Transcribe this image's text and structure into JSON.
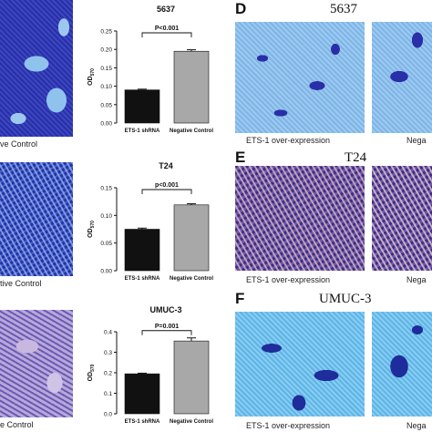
{
  "left_column": {
    "captions": [
      "ve Control",
      "tive Control",
      "e Control"
    ]
  },
  "right_column": {
    "panels": [
      {
        "letter": "D",
        "title": "5637",
        "caption_left": "ETS-1 over-expression",
        "caption_right": "Nega"
      },
      {
        "letter": "E",
        "title": "T24",
        "caption_left": "ETS-1 over-expression",
        "caption_right": "Nega"
      },
      {
        "letter": "F",
        "title": "UMUC-3",
        "caption_left": "ETS-1 over-expression",
        "caption_right": "Nega"
      }
    ]
  },
  "colors": {
    "shrna_bar": "#111111",
    "control_bar": "#a8a8a8",
    "stain_dark": "#2a2ea8",
    "stain_light": "#8fc3ee"
  },
  "chart_data": [
    {
      "type": "bar",
      "title": "5637",
      "categories": [
        "ETS-1 shRNA",
        "Negative Control"
      ],
      "values": [
        0.09,
        0.195
      ],
      "errors": [
        0.002,
        0.004
      ],
      "ylabel": "OD570",
      "ylim": [
        0,
        0.25
      ],
      "yticks": [
        "0.00",
        "0.05",
        "0.10",
        "0.15",
        "0.20",
        "0.25"
      ],
      "annotation": "P<0.001"
    },
    {
      "type": "bar",
      "title": "T24",
      "categories": [
        "ETS-1 shRNA",
        "Negative Control"
      ],
      "values": [
        0.075,
        0.119
      ],
      "errors": [
        0.002,
        0.002
      ],
      "ylabel": "OD570",
      "ylim": [
        0,
        0.15
      ],
      "yticks": [
        "0.00",
        "0.05",
        "0.10",
        "0.15"
      ],
      "annotation": "p<0.001"
    },
    {
      "type": "bar",
      "title": "UMUC-3",
      "categories": [
        "ETS-1 shRNA",
        "Negative Control"
      ],
      "values": [
        0.195,
        0.355
      ],
      "errors": [
        0.003,
        0.015
      ],
      "ylabel": "OD570",
      "ylim": [
        0,
        0.4
      ],
      "yticks": [
        "0.0",
        "0.1",
        "0.2",
        "0.3",
        "0.4"
      ],
      "annotation": "P=0.001"
    }
  ]
}
